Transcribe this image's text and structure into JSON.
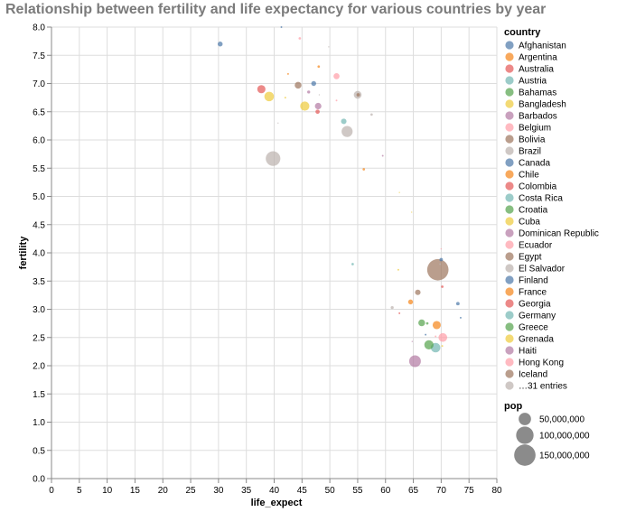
{
  "chart_data": {
    "type": "scatter",
    "title": "Relationship between fertility and life expectancy for various countries by year",
    "xlabel": "life_expect",
    "ylabel": "fertility",
    "xlim": [
      0,
      80
    ],
    "ylim": [
      0,
      8
    ],
    "x_ticks": [
      "0",
      "5",
      "10",
      "15",
      "20",
      "25",
      "30",
      "35",
      "40",
      "45",
      "50",
      "55",
      "60",
      "65",
      "70",
      "75",
      "80"
    ],
    "y_ticks": [
      "0.0",
      "0.5",
      "1.0",
      "1.5",
      "2.0",
      "2.5",
      "3.0",
      "3.5",
      "4.0",
      "4.5",
      "5.0",
      "5.5",
      "6.0",
      "6.5",
      "7.0",
      "7.5",
      "8.0"
    ],
    "grid": true,
    "legend_placement": "right",
    "color_legend": {
      "title": "country",
      "entries": [
        {
          "label": "Afghanistan",
          "color": "#4c78a8"
        },
        {
          "label": "Argentina",
          "color": "#f58518"
        },
        {
          "label": "Australia",
          "color": "#e45756"
        },
        {
          "label": "Austria",
          "color": "#72b7b2"
        },
        {
          "label": "Bahamas",
          "color": "#54a24b"
        },
        {
          "label": "Bangladesh",
          "color": "#eeca3b"
        },
        {
          "label": "Barbados",
          "color": "#b279a2"
        },
        {
          "label": "Belgium",
          "color": "#ff9da6"
        },
        {
          "label": "Bolivia",
          "color": "#9d755d"
        },
        {
          "label": "Brazil",
          "color": "#bab0ac"
        },
        {
          "label": "Canada",
          "color": "#4c78a8"
        },
        {
          "label": "Chile",
          "color": "#f58518"
        },
        {
          "label": "Colombia",
          "color": "#e45756"
        },
        {
          "label": "Costa Rica",
          "color": "#72b7b2"
        },
        {
          "label": "Croatia",
          "color": "#54a24b"
        },
        {
          "label": "Cuba",
          "color": "#eeca3b"
        },
        {
          "label": "Dominican Republic",
          "color": "#b279a2"
        },
        {
          "label": "Ecuador",
          "color": "#ff9da6"
        },
        {
          "label": "Egypt",
          "color": "#9d755d"
        },
        {
          "label": "El Salvador",
          "color": "#bab0ac"
        },
        {
          "label": "Finland",
          "color": "#4c78a8"
        },
        {
          "label": "France",
          "color": "#f58518"
        },
        {
          "label": "Georgia",
          "color": "#e45756"
        },
        {
          "label": "Germany",
          "color": "#72b7b2"
        },
        {
          "label": "Greece",
          "color": "#54a24b"
        },
        {
          "label": "Grenada",
          "color": "#eeca3b"
        },
        {
          "label": "Haiti",
          "color": "#b279a2"
        },
        {
          "label": "Hong Kong",
          "color": "#ff9da6"
        },
        {
          "label": "Iceland",
          "color": "#9d755d"
        },
        {
          "label": "…31 entries",
          "color": "#bab0ac"
        }
      ]
    },
    "size_legend": {
      "title": "pop",
      "entries": [
        {
          "label": "50,000,000",
          "value": 50000000
        },
        {
          "label": "100,000,000",
          "value": 100000000
        },
        {
          "label": "150,000,000",
          "value": 150000000
        }
      ]
    },
    "points": [
      {
        "x": 30.3,
        "y": 7.7,
        "color": "#4c78a8",
        "pop": 8000000
      },
      {
        "x": 41.3,
        "y": 8.0,
        "color": "#4c78a8",
        "pop": 1000000
      },
      {
        "x": 44.6,
        "y": 7.8,
        "color": "#ff9da6",
        "pop": 2000000
      },
      {
        "x": 49.8,
        "y": 7.65,
        "color": "#bab0ac",
        "pop": 500000
      },
      {
        "x": 48.0,
        "y": 7.3,
        "color": "#f58518",
        "pop": 2000000
      },
      {
        "x": 42.5,
        "y": 7.17,
        "color": "#f58518",
        "pop": 1000000
      },
      {
        "x": 51.2,
        "y": 7.13,
        "color": "#ff9da6",
        "pop": 12000000
      },
      {
        "x": 47.1,
        "y": 7.0,
        "color": "#4c78a8",
        "pop": 8000000
      },
      {
        "x": 44.3,
        "y": 6.97,
        "color": "#9d755d",
        "pop": 15000000
      },
      {
        "x": 37.7,
        "y": 6.9,
        "color": "#e45756",
        "pop": 22000000
      },
      {
        "x": 46.2,
        "y": 6.85,
        "color": "#b279a2",
        "pop": 3000000
      },
      {
        "x": 48.1,
        "y": 6.8,
        "color": "#bab0ac",
        "pop": 500000
      },
      {
        "x": 39.1,
        "y": 6.77,
        "color": "#eeca3b",
        "pop": 30000000
      },
      {
        "x": 42.0,
        "y": 6.75,
        "color": "#eeca3b",
        "pop": 1000000
      },
      {
        "x": 55.0,
        "y": 6.8,
        "color": "#bab0ac",
        "pop": 20000000
      },
      {
        "x": 55.1,
        "y": 6.8,
        "color": "#9d755d",
        "pop": 4000000
      },
      {
        "x": 51.2,
        "y": 6.7,
        "color": "#ff9da6",
        "pop": 1000000
      },
      {
        "x": 45.5,
        "y": 6.6,
        "color": "#eeca3b",
        "pop": 28000000
      },
      {
        "x": 47.9,
        "y": 6.6,
        "color": "#b279a2",
        "pop": 14000000
      },
      {
        "x": 47.8,
        "y": 6.5,
        "color": "#e45756",
        "pop": 6000000
      },
      {
        "x": 57.5,
        "y": 6.45,
        "color": "#bab0ac",
        "pop": 2000000
      },
      {
        "x": 52.5,
        "y": 6.33,
        "color": "#72b7b2",
        "pop": 10000000
      },
      {
        "x": 40.7,
        "y": 6.3,
        "color": "#bab0ac",
        "pop": 500000
      },
      {
        "x": 53.1,
        "y": 6.15,
        "color": "#bab0ac",
        "pop": 40000000
      },
      {
        "x": 59.5,
        "y": 5.72,
        "color": "#b279a2",
        "pop": 1000000
      },
      {
        "x": 39.8,
        "y": 5.67,
        "color": "#bab0ac",
        "pop": 70000000
      },
      {
        "x": 56.1,
        "y": 5.48,
        "color": "#f58518",
        "pop": 2000000
      },
      {
        "x": 62.5,
        "y": 5.07,
        "color": "#eeca3b",
        "pop": 500000
      },
      {
        "x": 64.7,
        "y": 4.72,
        "color": "#eeca3b",
        "pop": 500000
      },
      {
        "x": 70.0,
        "y": 4.07,
        "color": "#ff9da6",
        "pop": 500000
      },
      {
        "x": 70.0,
        "y": 3.88,
        "color": "#4c78a8",
        "pop": 4000000
      },
      {
        "x": 54.1,
        "y": 3.8,
        "color": "#72b7b2",
        "pop": 2000000
      },
      {
        "x": 69.8,
        "y": 3.8,
        "color": "#bab0ac",
        "pop": 1000000
      },
      {
        "x": 69.4,
        "y": 3.7,
        "color": "#9d755d",
        "pop": 150000000
      },
      {
        "x": 62.3,
        "y": 3.7,
        "color": "#eeca3b",
        "pop": 1000000
      },
      {
        "x": 70.2,
        "y": 3.4,
        "color": "#e45756",
        "pop": 2000000
      },
      {
        "x": 65.8,
        "y": 3.3,
        "color": "#9d755d",
        "pop": 10000000
      },
      {
        "x": 64.5,
        "y": 3.13,
        "color": "#f58518",
        "pop": 8000000
      },
      {
        "x": 73.0,
        "y": 3.1,
        "color": "#4c78a8",
        "pop": 4000000
      },
      {
        "x": 61.2,
        "y": 3.03,
        "color": "#bab0ac",
        "pop": 3000000
      },
      {
        "x": 62.5,
        "y": 2.93,
        "color": "#e45756",
        "pop": 1000000
      },
      {
        "x": 73.5,
        "y": 2.85,
        "color": "#4c78a8",
        "pop": 1000000
      },
      {
        "x": 66.5,
        "y": 2.76,
        "color": "#54a24b",
        "pop": 15000000
      },
      {
        "x": 67.5,
        "y": 2.75,
        "color": "#54a24b",
        "pop": 2000000
      },
      {
        "x": 69.2,
        "y": 2.72,
        "color": "#f58518",
        "pop": 22000000
      },
      {
        "x": 67.2,
        "y": 2.55,
        "color": "#4c78a8",
        "pop": 1000000
      },
      {
        "x": 69.0,
        "y": 2.52,
        "color": "#ff9da6",
        "pop": 1000000
      },
      {
        "x": 70.3,
        "y": 2.5,
        "color": "#ff9da6",
        "pop": 25000000
      },
      {
        "x": 64.8,
        "y": 2.43,
        "color": "#b279a2",
        "pop": 500000
      },
      {
        "x": 67.8,
        "y": 2.37,
        "color": "#54a24b",
        "pop": 28000000
      },
      {
        "x": 69.0,
        "y": 2.32,
        "color": "#72b7b2",
        "pop": 30000000
      },
      {
        "x": 70.2,
        "y": 2.35,
        "color": "#eeca3b",
        "pop": 1000000
      },
      {
        "x": 65.3,
        "y": 2.08,
        "color": "#b279a2",
        "pop": 45000000
      }
    ]
  }
}
